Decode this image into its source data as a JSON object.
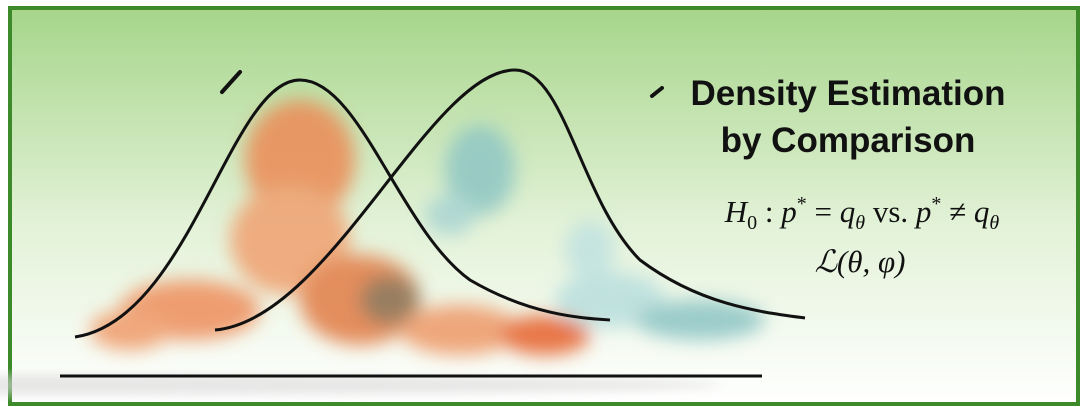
{
  "slide": {
    "title_lines": [
      "Density Estimation",
      "by Comparison"
    ],
    "hypothesis": [
      "H",
      "0",
      " : ",
      "p",
      "*",
      " = ",
      "q",
      "θ",
      " vs. ",
      "p",
      "*",
      " ≠ ",
      "q",
      "θ"
    ],
    "loss": [
      "ℒ",
      "(θ, φ)"
    ]
  }
}
